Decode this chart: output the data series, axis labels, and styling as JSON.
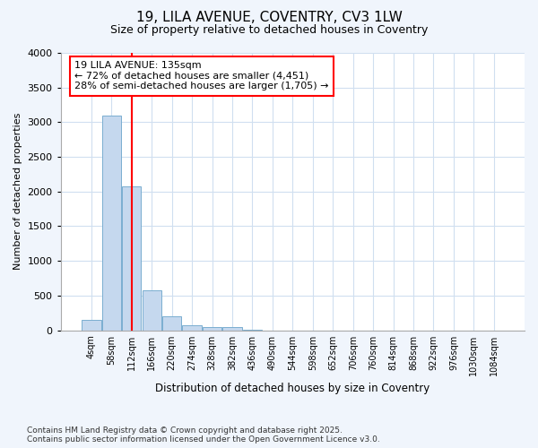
{
  "title1": "19, LILA AVENUE, COVENTRY, CV3 1LW",
  "title2": "Size of property relative to detached houses in Coventry",
  "xlabel": "Distribution of detached houses by size in Coventry",
  "ylabel": "Number of detached properties",
  "categories": [
    "4sqm",
    "58sqm",
    "112sqm",
    "166sqm",
    "220sqm",
    "274sqm",
    "328sqm",
    "382sqm",
    "436sqm",
    "490sqm",
    "544sqm",
    "598sqm",
    "652sqm",
    "706sqm",
    "760sqm",
    "814sqm",
    "868sqm",
    "922sqm",
    "976sqm",
    "1030sqm",
    "1084sqm"
  ],
  "values": [
    150,
    3100,
    2080,
    580,
    200,
    70,
    50,
    40,
    3,
    0,
    0,
    0,
    0,
    0,
    0,
    0,
    0,
    0,
    0,
    0,
    0
  ],
  "bar_color": "#c5d8ee",
  "bar_edge_color": "#7aaed0",
  "grid_color": "#d0dff0",
  "plot_bg_color": "#ffffff",
  "fig_bg_color": "#f0f5fc",
  "vline_x": 2.0,
  "vline_color": "red",
  "annotation_text": "19 LILA AVENUE: 135sqm\n← 72% of detached houses are smaller (4,451)\n28% of semi-detached houses are larger (1,705) →",
  "annotation_box_color": "red",
  "ylim": [
    0,
    4000
  ],
  "yticks": [
    0,
    500,
    1000,
    1500,
    2000,
    2500,
    3000,
    3500,
    4000
  ],
  "footer1": "Contains HM Land Registry data © Crown copyright and database right 2025.",
  "footer2": "Contains public sector information licensed under the Open Government Licence v3.0."
}
